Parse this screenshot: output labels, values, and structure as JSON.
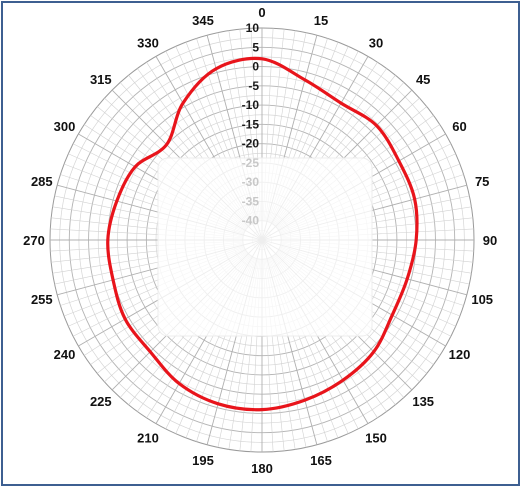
{
  "chart_data": {
    "type": "polar-line",
    "angle_unit": "degrees",
    "angle_direction": "clockwise",
    "zero_at": "top",
    "angle_ticks": [
      0,
      15,
      30,
      45,
      60,
      75,
      90,
      105,
      120,
      135,
      150,
      165,
      180,
      195,
      210,
      225,
      240,
      255,
      270,
      285,
      300,
      315,
      330,
      345
    ],
    "angle_tick_labels": [
      "0",
      "15",
      "30",
      "45",
      "60",
      "75",
      "90",
      "105",
      "120",
      "135",
      "150",
      "165",
      "180",
      "195",
      "210",
      "225",
      "240",
      "255",
      "270",
      "285",
      "300",
      "315",
      "330",
      "345"
    ],
    "radial_ticks": [
      10,
      5,
      0,
      -5,
      -10,
      -15,
      -20,
      -25,
      -30,
      -35,
      -40
    ],
    "radial_tick_labels": [
      "10",
      "5",
      "0",
      "-5",
      "-10",
      "-15",
      "-20",
      "-25",
      "-30",
      "-35",
      "-40"
    ],
    "r_range": [
      -45,
      10
    ],
    "grid": true,
    "center_region": "faded",
    "series": [
      {
        "color": "#e8141b",
        "theta": [
          0,
          15,
          30,
          45,
          60,
          75,
          90,
          105,
          120,
          135,
          150,
          165,
          180,
          195,
          210,
          225,
          240,
          255,
          270,
          285,
          300,
          315,
          330,
          345
        ],
        "r": [
          2,
          -2,
          -4,
          -3,
          -4,
          -4,
          -5,
          -6,
          -6,
          -4,
          -3,
          -2,
          -1,
          -1,
          -2,
          -4,
          -4,
          -5,
          -5,
          -6,
          -7,
          -10,
          -4,
          1
        ]
      }
    ]
  }
}
